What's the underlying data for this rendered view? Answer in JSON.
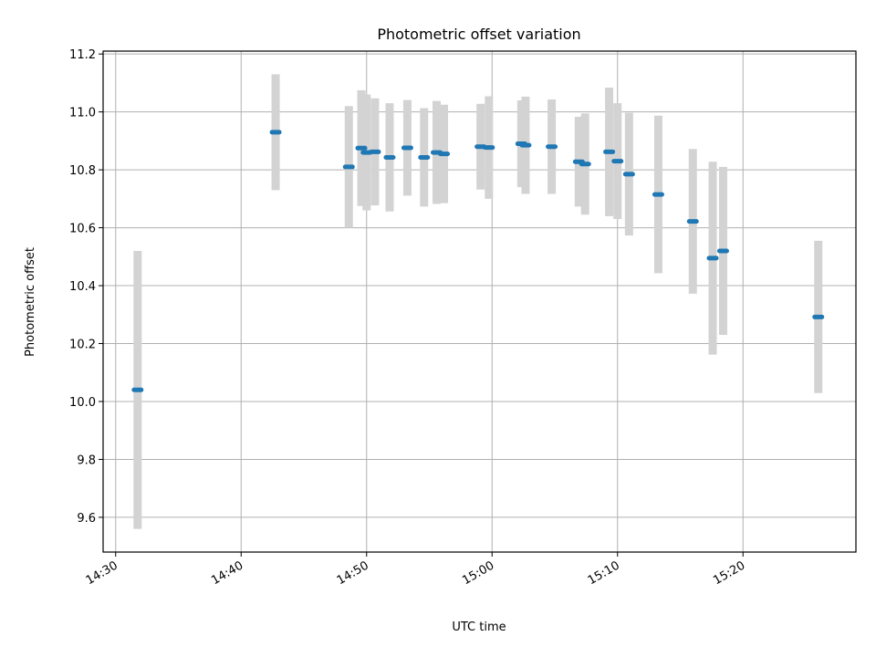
{
  "chart_data": {
    "type": "scatter",
    "title": "Photometric offset variation",
    "xlabel": "UTC time",
    "ylabel": "Photometric offset",
    "xlim": [
      "14:29",
      "15:29"
    ],
    "ylim": [
      9.48,
      11.21
    ],
    "xticks": [
      "14:30",
      "14:40",
      "14:50",
      "15:00",
      "15:10",
      "15:20"
    ],
    "yticks": [
      "9.6",
      "9.8",
      "10.0",
      "10.2",
      "10.4",
      "10.6",
      "10.8",
      "11.0",
      "11.2"
    ],
    "grid": true,
    "colors": {
      "marker": "#1f77b4",
      "errorbar": "#d3d3d3",
      "grid": "#b0b0b0"
    },
    "points": [
      {
        "t": "14:31:45",
        "y": 10.04,
        "yerr": 0.48
      },
      {
        "t": "14:42:45",
        "y": 10.93,
        "yerr": 0.2
      },
      {
        "t": "14:48:35",
        "y": 10.81,
        "yerr": 0.21
      },
      {
        "t": "14:49:35",
        "y": 10.875,
        "yerr": 0.2
      },
      {
        "t": "14:50:00",
        "y": 10.86,
        "yerr": 0.2
      },
      {
        "t": "14:50:40",
        "y": 10.862,
        "yerr": 0.185
      },
      {
        "t": "14:51:50",
        "y": 10.843,
        "yerr": 0.187
      },
      {
        "t": "14:53:15",
        "y": 10.876,
        "yerr": 0.165
      },
      {
        "t": "14:54:35",
        "y": 10.843,
        "yerr": 0.17
      },
      {
        "t": "14:55:35",
        "y": 10.86,
        "yerr": 0.178
      },
      {
        "t": "14:56:10",
        "y": 10.855,
        "yerr": 0.17
      },
      {
        "t": "14:59:05",
        "y": 10.88,
        "yerr": 0.148
      },
      {
        "t": "14:59:45",
        "y": 10.877,
        "yerr": 0.177
      },
      {
        "t": "15:02:20",
        "y": 10.89,
        "yerr": 0.15
      },
      {
        "t": "15:02:40",
        "y": 10.885,
        "yerr": 0.168
      },
      {
        "t": "15:04:45",
        "y": 10.88,
        "yerr": 0.163
      },
      {
        "t": "15:06:55",
        "y": 10.828,
        "yerr": 0.155
      },
      {
        "t": "15:07:25",
        "y": 10.82,
        "yerr": 0.175
      },
      {
        "t": "15:09:20",
        "y": 10.862,
        "yerr": 0.222
      },
      {
        "t": "15:10:00",
        "y": 10.83,
        "yerr": 0.2
      },
      {
        "t": "15:10:55",
        "y": 10.785,
        "yerr": 0.212
      },
      {
        "t": "15:13:15",
        "y": 10.715,
        "yerr": 0.272
      },
      {
        "t": "15:16:00",
        "y": 10.622,
        "yerr": 0.25
      },
      {
        "t": "15:17:35",
        "y": 10.495,
        "yerr": 0.333
      },
      {
        "t": "15:18:25",
        "y": 10.52,
        "yerr": 0.29
      },
      {
        "t": "15:26:00",
        "y": 10.292,
        "yerr": 0.263
      }
    ]
  }
}
